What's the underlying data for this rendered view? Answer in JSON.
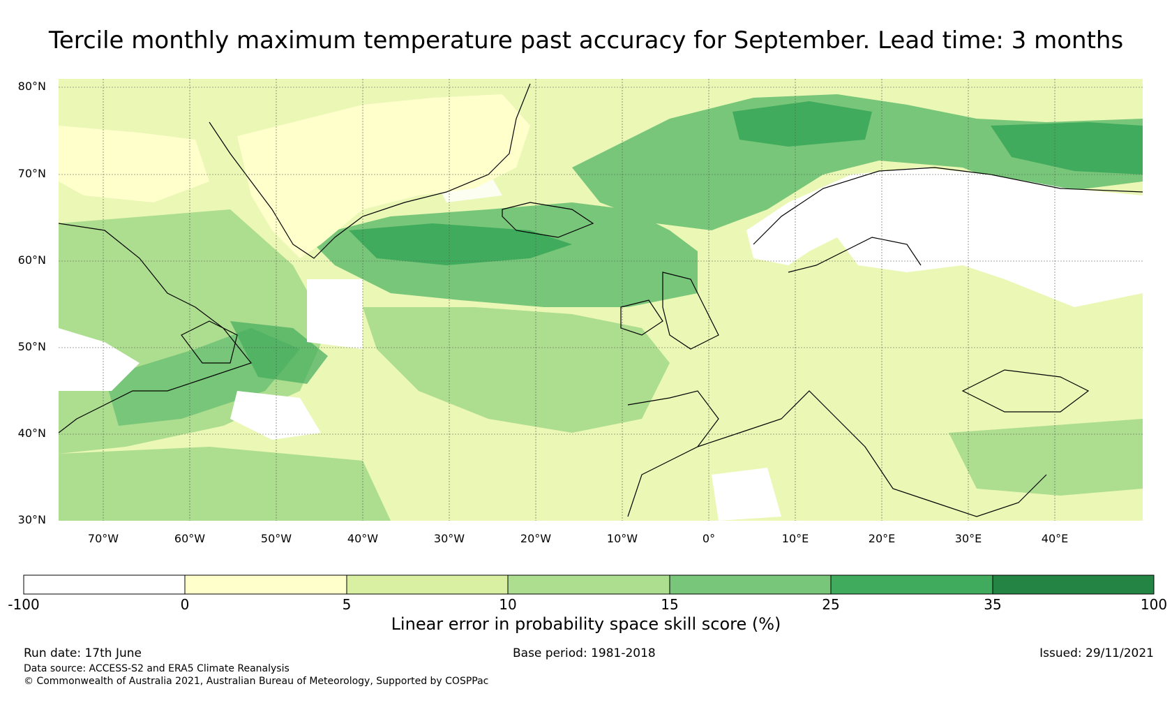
{
  "title": "Tercile monthly maximum temperature past accuracy for September. Lead time: 3 months",
  "map": {
    "lat_labels": [
      "80°N",
      "70°N",
      "60°N",
      "50°N",
      "40°N",
      "30°N"
    ],
    "lon_labels": [
      "70°W",
      "60°W",
      "50°W",
      "40°W",
      "30°W",
      "20°W",
      "10°W",
      "0°",
      "10°E",
      "20°E",
      "30°E",
      "40°E"
    ],
    "lat_range": [
      30,
      80
    ],
    "lon_range": [
      -75,
      50
    ]
  },
  "colorbar": {
    "ticks": [
      "-100",
      "0",
      "5",
      "10",
      "15",
      "25",
      "35",
      "100"
    ],
    "colors": [
      "#ffffff",
      "#ffffcc",
      "#d9f0a3",
      "#addd8e",
      "#78c679",
      "#41ab5d",
      "#238443"
    ],
    "label": "Linear error in probability space skill score (%)"
  },
  "footer": {
    "run_date": "Run date: 17th June",
    "base_period": "Base period: 1981-2018",
    "issued": "Issued: 29/11/2021",
    "data_source": "Data source: ACCESS-S2 and ERA5 Climate Reanalysis",
    "copyright": "© Commonwealth of Australia 2021, Australian Bureau of Meteorology, Supported by COSPPac"
  }
}
